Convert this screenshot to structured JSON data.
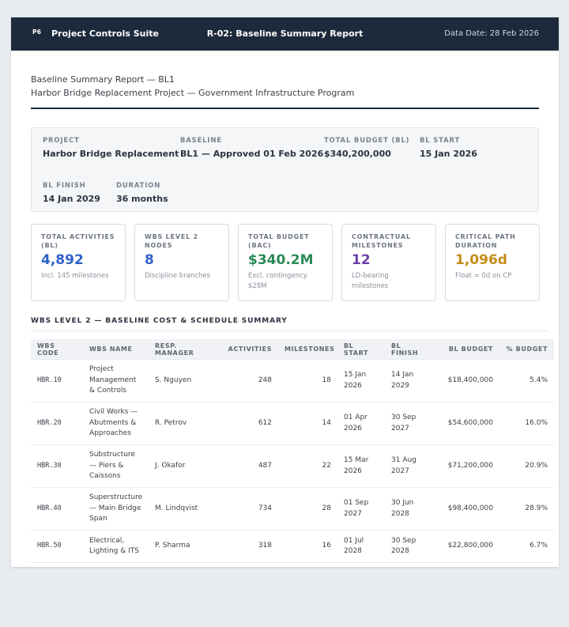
{
  "topbar": {
    "logo": "P6",
    "app_title": "Project Controls Suite",
    "report_title": "R-02: Baseline Summary Report",
    "data_date": "Data Date: 28 Feb 2026"
  },
  "header": {
    "line1": "Baseline Summary Report — BL1",
    "line2": "Harbor Bridge Replacement Project — Government Infrastructure Program"
  },
  "info": {
    "project_label": "PROJECT",
    "project_value": "Harbor Bridge Replacement",
    "baseline_label": "BASELINE",
    "baseline_value": "BL1 — Approved 01 Feb 2026",
    "budget_label": "TOTAL BUDGET (BL)",
    "budget_value": "$340,200,000",
    "start_label": "BL START",
    "start_value": "15 Jan 2026",
    "finish_label": "BL FINISH",
    "finish_value": "14 Jan 2029",
    "duration_label": "DURATION",
    "duration_value": "36 months"
  },
  "kpis": [
    {
      "label": "TOTAL ACTIVITIES (BL)",
      "value": "4,892",
      "sub": "Incl. 145 milestones",
      "color": "#2f62c8"
    },
    {
      "label": "WBS LEVEL 2 NODES",
      "value": "8",
      "sub": "Discipline branches",
      "color": "#2f62c8"
    },
    {
      "label": "TOTAL BUDGET (BAC)",
      "value": "$340.2M",
      "sub": "Excl. contingency $28M",
      "color": "#2a8a55"
    },
    {
      "label": "CONTRACTUAL MILESTONES",
      "value": "12",
      "sub": "LD-bearing milestones",
      "color": "#6a3fa8"
    },
    {
      "label": "CRITICAL PATH DURATION",
      "value": "1,096d",
      "sub": "Float = 0d on CP",
      "color": "#c48d17"
    }
  ],
  "section_title": "WBS LEVEL 2 — BASELINE COST & SCHEDULE SUMMARY",
  "table": {
    "headers": [
      "WBS CODE",
      "WBS NAME",
      "RESP. MANAGER",
      "ACTIVITIES",
      "MILESTONES",
      "BL START",
      "BL FINISH",
      "BL BUDGET",
      "% BUDGET"
    ],
    "rows": [
      {
        "code": "HBR.10",
        "name": "Project Management & Controls",
        "manager": "S. Nguyen",
        "activities": "248",
        "milestones": "18",
        "start": "15 Jan 2026",
        "finish": "14 Jan 2029",
        "budget": "$18,400,000",
        "pct": "5.4%"
      },
      {
        "code": "HBR.20",
        "name": "Civil Works — Abutments & Approaches",
        "manager": "R. Petrov",
        "activities": "612",
        "milestones": "14",
        "start": "01 Apr 2026",
        "finish": "30 Sep 2027",
        "budget": "$54,600,000",
        "pct": "16.0%"
      },
      {
        "code": "HBR.30",
        "name": "Substructure — Piers & Caissons",
        "manager": "J. Okafor",
        "activities": "487",
        "milestones": "22",
        "start": "15 Mar 2026",
        "finish": "31 Aug 2027",
        "budget": "$71,200,000",
        "pct": "20.9%"
      },
      {
        "code": "HBR.40",
        "name": "Superstructure — Main Bridge Span",
        "manager": "M. Lindqvist",
        "activities": "734",
        "milestones": "28",
        "start": "01 Sep 2027",
        "finish": "30 Jun 2028",
        "budget": "$98,400,000",
        "pct": "28.9%"
      },
      {
        "code": "HBR.50",
        "name": "Electrical, Lighting & ITS",
        "manager": "P. Sharma",
        "activities": "318",
        "milestones": "16",
        "start": "01 Jul 2028",
        "finish": "30 Sep 2028",
        "budget": "$22,800,000",
        "pct": "6.7%"
      }
    ]
  }
}
